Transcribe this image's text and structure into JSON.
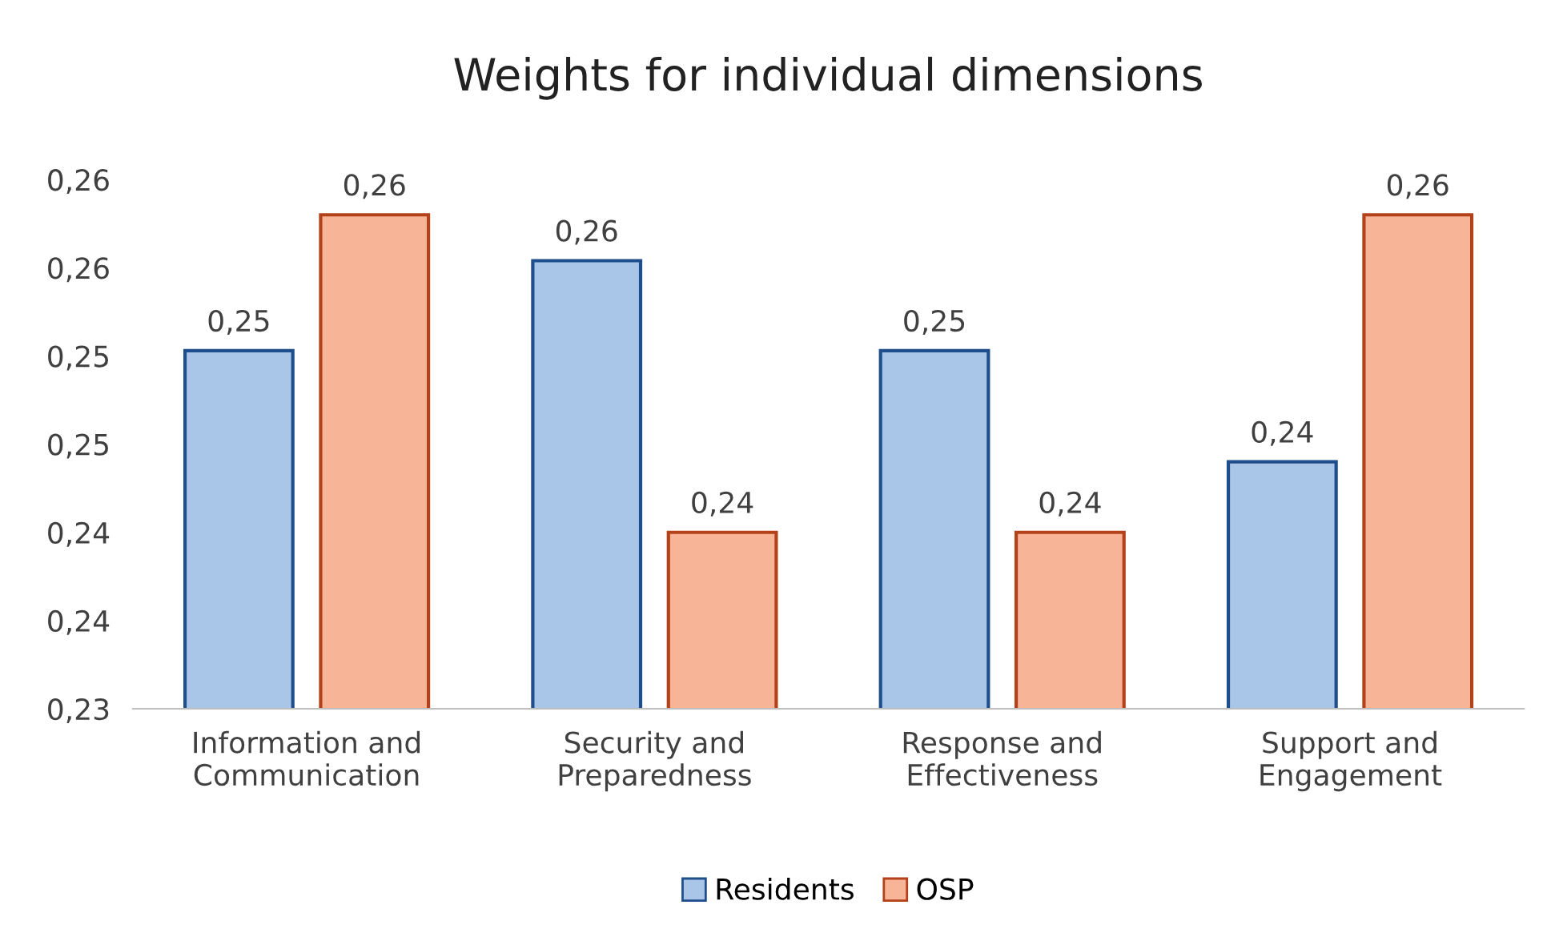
{
  "chart_data": {
    "type": "bar",
    "title": "Weights for individual dimensions",
    "categories": [
      "Information and\nCommunication",
      "Security and\nPreparedness",
      "Response and\nEffectiveness",
      "Support and\nEngagement"
    ],
    "series": [
      {
        "name": "Residents",
        "color": "#a9c5e8",
        "values": [
          0.2503,
          0.2554,
          0.2503,
          0.244
        ],
        "value_labels": [
          "0,25",
          "0,26",
          "0,25",
          "0,24"
        ]
      },
      {
        "name": "OSP",
        "color": "#f7b497",
        "values": [
          0.258,
          0.24,
          0.24,
          0.258
        ],
        "value_labels": [
          "0,26",
          "0,24",
          "0,24",
          "0,26"
        ]
      }
    ],
    "ylim": [
      0.23,
      0.26
    ],
    "yticks": [
      {
        "value": 0.23,
        "label": "0,23"
      },
      {
        "value": 0.235,
        "label": "0,24"
      },
      {
        "value": 0.24,
        "label": "0,24"
      },
      {
        "value": 0.245,
        "label": "0,25"
      },
      {
        "value": 0.25,
        "label": "0,25"
      },
      {
        "value": 0.255,
        "label": "0,26"
      },
      {
        "value": 0.26,
        "label": "0,26"
      }
    ],
    "grid": false,
    "legend": "bottom"
  }
}
